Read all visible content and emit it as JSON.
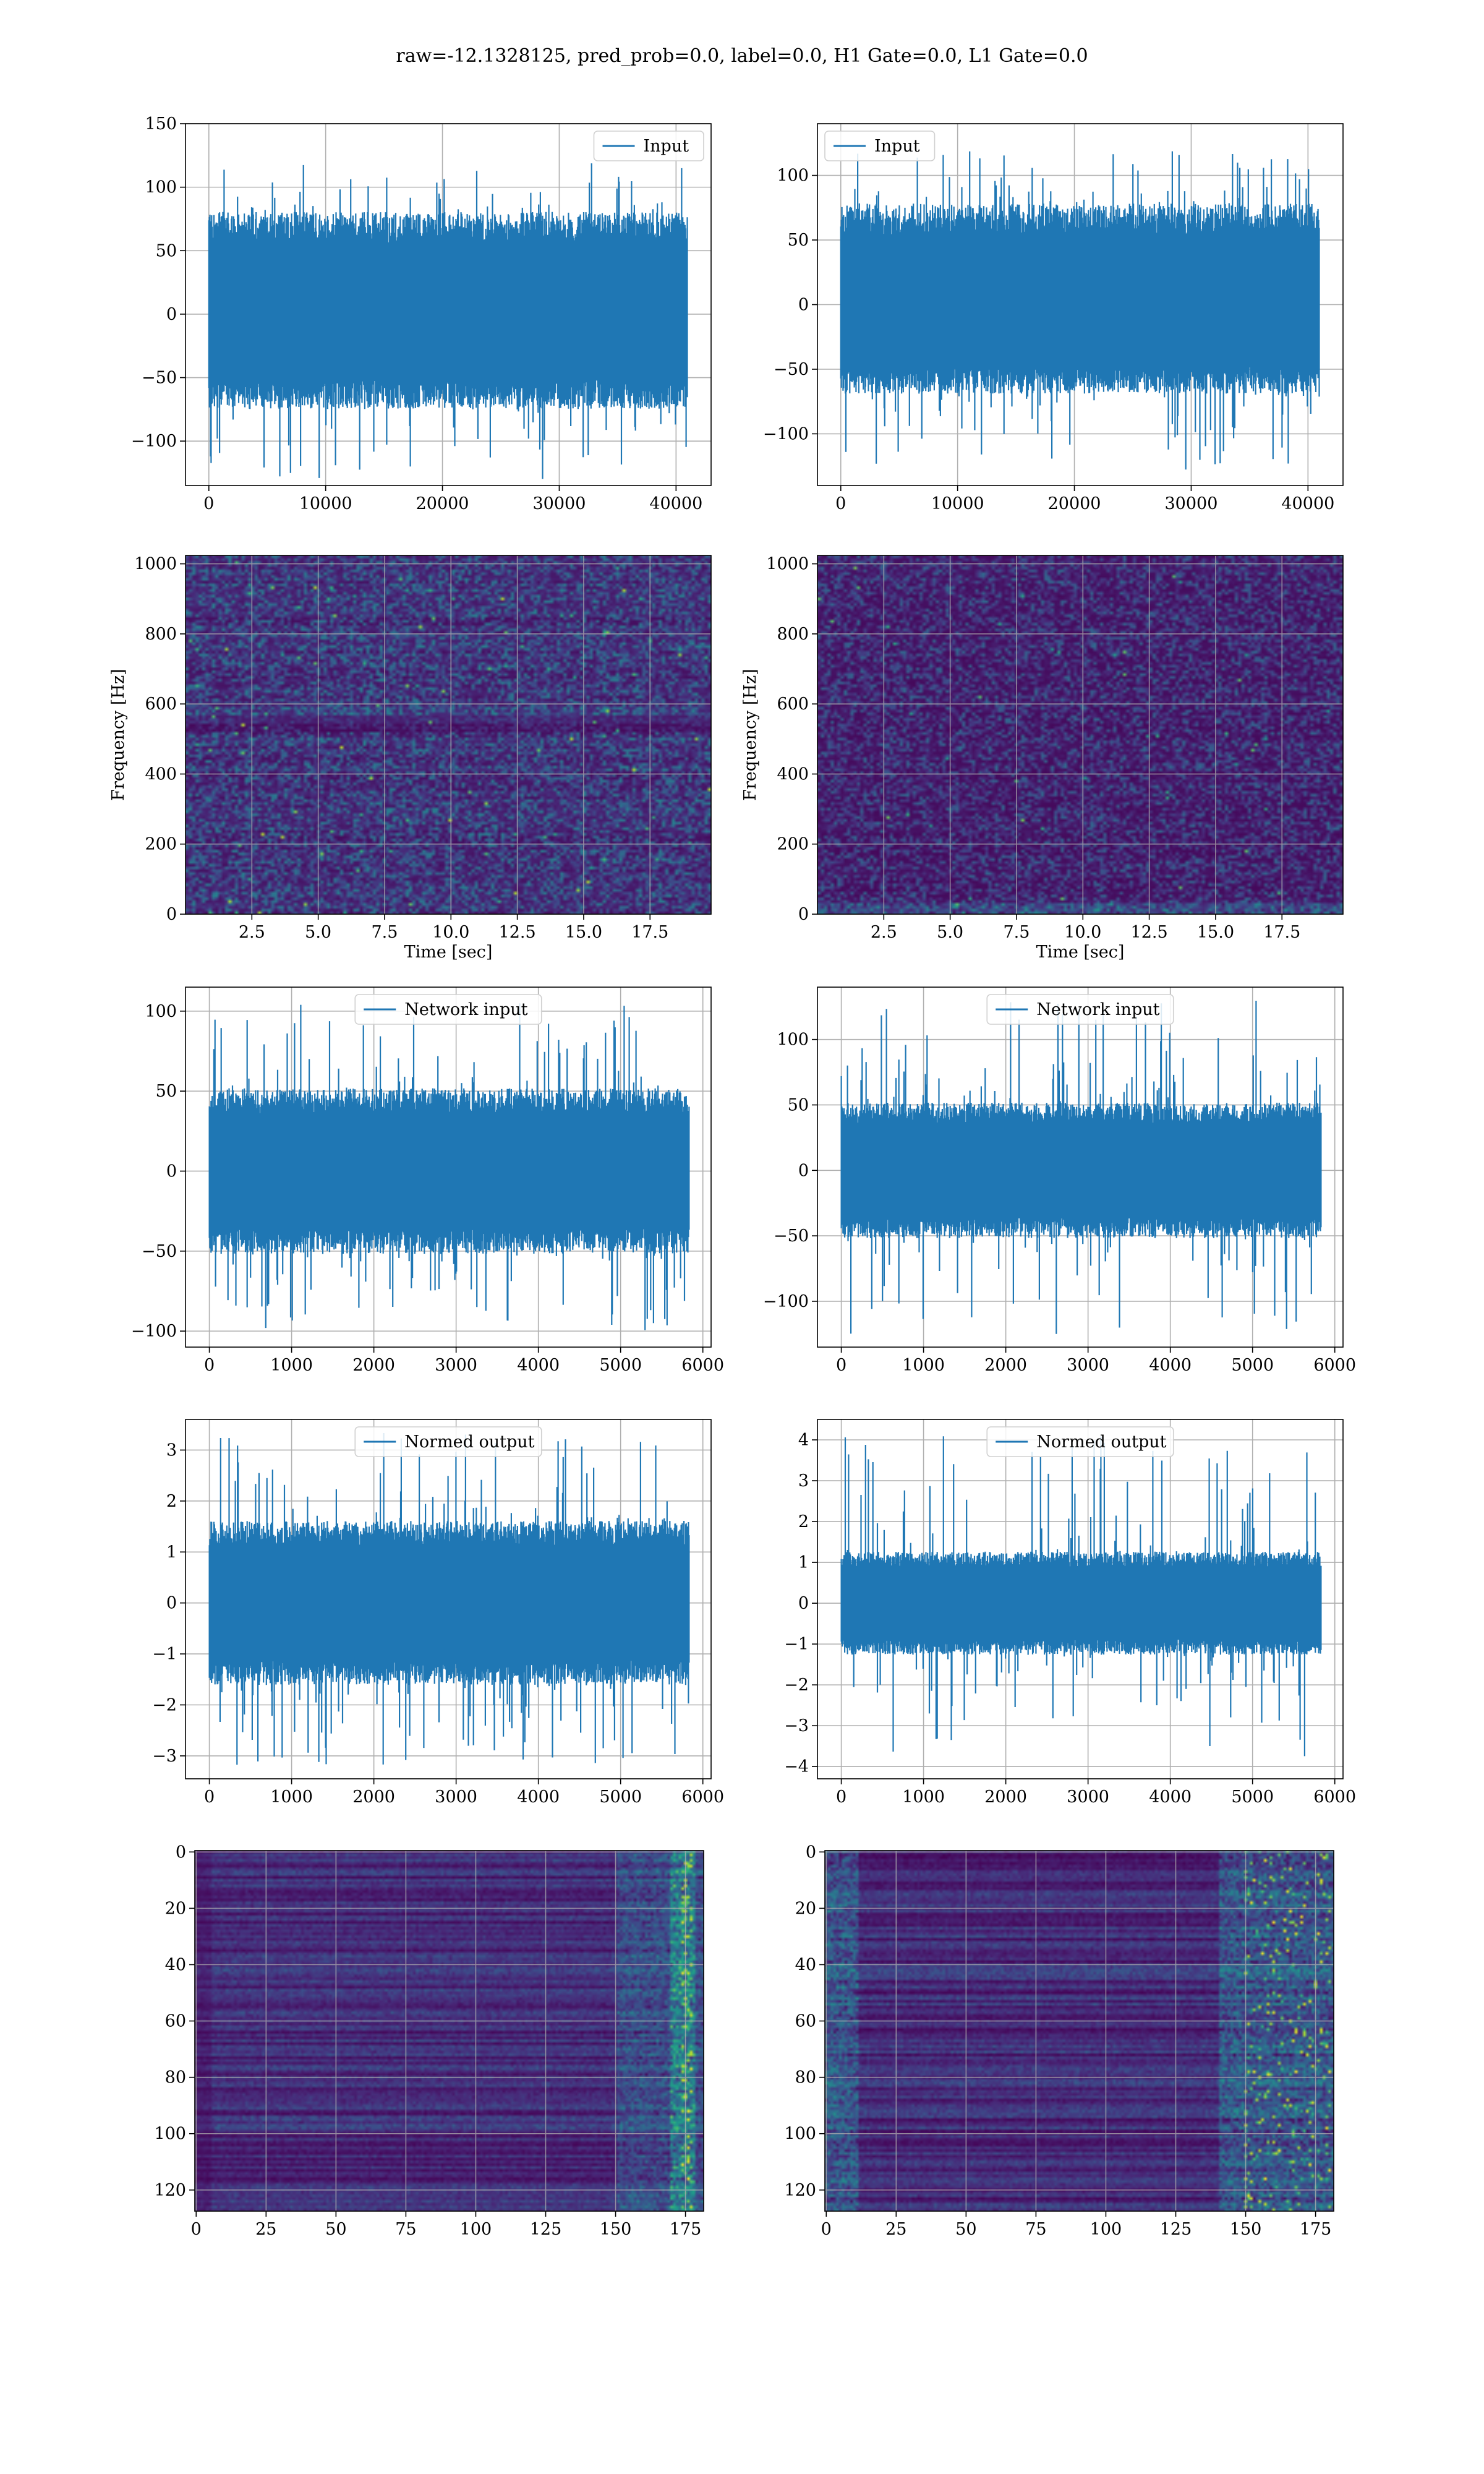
{
  "figure": {
    "title": "raw=-12.1328125, pred_prob=0.0, label=0.0, H1 Gate=0.0, L1 Gate=0.0"
  },
  "colors": {
    "line": "#1f77b4",
    "grid": "#b0b0b0",
    "viridis": [
      "#440154",
      "#482878",
      "#3e4989",
      "#31688e",
      "#26828e",
      "#1f9e89",
      "#35b779",
      "#6ece58",
      "#b5de2b",
      "#fde725"
    ]
  },
  "chart_data": [
    {
      "id": "r1c1",
      "type": "line",
      "legend": "Input",
      "legend_loc": "top-right",
      "xlim": [
        -2000,
        43000
      ],
      "ylim": [
        -135,
        150
      ],
      "xticks": [
        0,
        10000,
        20000,
        30000,
        40000
      ],
      "xtick_labels": [
        "0",
        "10000",
        "20000",
        "30000",
        "40000"
      ],
      "yticks": [
        -100,
        -50,
        0,
        50,
        100,
        150
      ],
      "ytick_labels": [
        "−100",
        "−50",
        "0",
        "50",
        "100",
        "150"
      ],
      "x_range": [
        0,
        40960
      ],
      "envelope": {
        "core_lo": -65,
        "core_hi": 70,
        "peak_lo": -130,
        "peak_hi": 120
      },
      "grid": true
    },
    {
      "id": "r1c2",
      "type": "line",
      "legend": "Input",
      "legend_loc": "top-left",
      "xlim": [
        -2000,
        43000
      ],
      "ylim": [
        -140,
        140
      ],
      "xticks": [
        0,
        10000,
        20000,
        30000,
        40000
      ],
      "xtick_labels": [
        "0",
        "10000",
        "20000",
        "30000",
        "40000"
      ],
      "yticks": [
        -100,
        -50,
        0,
        50,
        100
      ],
      "ytick_labels": [
        "−100",
        "−50",
        "0",
        "50",
        "100"
      ],
      "x_range": [
        0,
        40960
      ],
      "envelope": {
        "core_lo": -60,
        "core_hi": 68,
        "peak_lo": -128,
        "peak_hi": 120
      },
      "grid": true
    },
    {
      "id": "r2c1",
      "type": "heatmap",
      "variant": "spec1",
      "xlim": [
        0,
        19.8
      ],
      "ylim": [
        0,
        1024
      ],
      "xticks": [
        2.5,
        5.0,
        7.5,
        10.0,
        12.5,
        15.0,
        17.5
      ],
      "xtick_labels": [
        "2.5",
        "5.0",
        "7.5",
        "10.0",
        "12.5",
        "15.0",
        "17.5"
      ],
      "yticks": [
        0,
        200,
        400,
        600,
        800,
        1000
      ],
      "ytick_labels": [
        "0",
        "200",
        "400",
        "600",
        "800",
        "1000"
      ],
      "xlabel": "Time [sec]",
      "ylabel": "Frequency [Hz]",
      "grid": true
    },
    {
      "id": "r2c2",
      "type": "heatmap",
      "variant": "spec2",
      "xlim": [
        0,
        19.8
      ],
      "ylim": [
        0,
        1024
      ],
      "xticks": [
        2.5,
        5.0,
        7.5,
        10.0,
        12.5,
        15.0,
        17.5
      ],
      "xtick_labels": [
        "2.5",
        "5.0",
        "7.5",
        "10.0",
        "12.5",
        "15.0",
        "17.5"
      ],
      "yticks": [
        0,
        200,
        400,
        600,
        800,
        1000
      ],
      "ytick_labels": [
        "0",
        "200",
        "400",
        "600",
        "800",
        "1000"
      ],
      "xlabel": "Time [sec]",
      "ylabel": "Frequency [Hz]",
      "grid": true
    },
    {
      "id": "r3c1",
      "type": "line",
      "legend": "Network input",
      "legend_loc": "top-center",
      "xlim": [
        -290,
        6100
      ],
      "ylim": [
        -110,
        115
      ],
      "xticks": [
        0,
        1000,
        2000,
        3000,
        4000,
        5000,
        6000
      ],
      "xtick_labels": [
        "0",
        "1000",
        "2000",
        "3000",
        "4000",
        "5000",
        "6000"
      ],
      "yticks": [
        -100,
        -50,
        0,
        50,
        100
      ],
      "ytick_labels": [
        "−100",
        "−50",
        "0",
        "50",
        "100"
      ],
      "x_range": [
        0,
        5832
      ],
      "envelope": {
        "core_lo": -45,
        "core_hi": 45,
        "peak_lo": -100,
        "peak_hi": 105
      },
      "grid": true
    },
    {
      "id": "r3c2",
      "type": "line",
      "legend": "Network input",
      "legend_loc": "top-center",
      "xlim": [
        -290,
        6100
      ],
      "ylim": [
        -135,
        140
      ],
      "xticks": [
        0,
        1000,
        2000,
        3000,
        4000,
        5000,
        6000
      ],
      "xtick_labels": [
        "0",
        "1000",
        "2000",
        "3000",
        "4000",
        "5000",
        "6000"
      ],
      "yticks": [
        -100,
        -50,
        0,
        50,
        100
      ],
      "ytick_labels": [
        "−100",
        "−50",
        "0",
        "50",
        "100"
      ],
      "x_range": [
        0,
        5832
      ],
      "envelope": {
        "core_lo": -45,
        "core_hi": 45,
        "peak_lo": -125,
        "peak_hi": 130
      },
      "grid": true
    },
    {
      "id": "r4c1",
      "type": "line",
      "legend": "Normed output",
      "legend_loc": "top-center",
      "xlim": [
        -290,
        6100
      ],
      "ylim": [
        -3.45,
        3.6
      ],
      "xticks": [
        0,
        1000,
        2000,
        3000,
        4000,
        5000,
        6000
      ],
      "xtick_labels": [
        "0",
        "1000",
        "2000",
        "3000",
        "4000",
        "5000",
        "6000"
      ],
      "yticks": [
        -3,
        -2,
        -1,
        0,
        1,
        2,
        3
      ],
      "ytick_labels": [
        "−3",
        "−2",
        "−1",
        "0",
        "1",
        "2",
        "3"
      ],
      "x_range": [
        0,
        5832
      ],
      "envelope": {
        "core_lo": -1.4,
        "core_hi": 1.4,
        "peak_lo": -3.2,
        "peak_hi": 3.35
      },
      "grid": true
    },
    {
      "id": "r4c2",
      "type": "line",
      "legend": "Normed output",
      "legend_loc": "top-center",
      "xlim": [
        -290,
        6100
      ],
      "ylim": [
        -4.3,
        4.5
      ],
      "xticks": [
        0,
        1000,
        2000,
        3000,
        4000,
        5000,
        6000
      ],
      "xtick_labels": [
        "0",
        "1000",
        "2000",
        "3000",
        "4000",
        "5000",
        "6000"
      ],
      "yticks": [
        -4,
        -3,
        -2,
        -1,
        0,
        1,
        2,
        3,
        4
      ],
      "ytick_labels": [
        "−4",
        "−3",
        "−2",
        "−1",
        "0",
        "1",
        "2",
        "3",
        "4"
      ],
      "x_range": [
        0,
        5832
      ],
      "envelope": {
        "core_lo": -1.1,
        "core_hi": 1.1,
        "peak_lo": -3.8,
        "peak_hi": 4.2
      },
      "grid": true
    },
    {
      "id": "r5c1",
      "type": "heatmap",
      "variant": "feat1",
      "xlim": [
        -0.5,
        181.5
      ],
      "ylim": [
        127.5,
        -0.5
      ],
      "xticks": [
        0,
        25,
        50,
        75,
        100,
        125,
        150,
        175
      ],
      "xtick_labels": [
        "0",
        "25",
        "50",
        "75",
        "100",
        "125",
        "150",
        "175"
      ],
      "yticks": [
        0,
        20,
        40,
        60,
        80,
        100,
        120
      ],
      "ytick_labels": [
        "0",
        "20",
        "40",
        "60",
        "80",
        "100",
        "120"
      ],
      "rows": 128,
      "cols": 182,
      "grid": true
    },
    {
      "id": "r5c2",
      "type": "heatmap",
      "variant": "feat2",
      "xlim": [
        -0.5,
        181.5
      ],
      "ylim": [
        127.5,
        -0.5
      ],
      "xticks": [
        0,
        25,
        50,
        75,
        100,
        125,
        150,
        175
      ],
      "xtick_labels": [
        "0",
        "25",
        "50",
        "75",
        "100",
        "125",
        "150",
        "175"
      ],
      "yticks": [
        0,
        20,
        40,
        60,
        80,
        100,
        120
      ],
      "ytick_labels": [
        "0",
        "20",
        "40",
        "60",
        "80",
        "100",
        "120"
      ],
      "rows": 128,
      "cols": 182,
      "grid": true
    }
  ]
}
